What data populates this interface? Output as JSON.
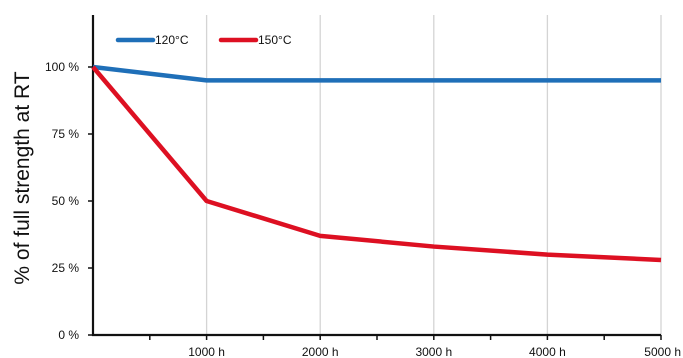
{
  "chart_data": {
    "type": "line",
    "title": "",
    "xlabel": "",
    "ylabel": "% of full strength at RT",
    "xlim": [
      0,
      5000
    ],
    "ylim": [
      0,
      120
    ],
    "x_ticks": [
      1000,
      2000,
      3000,
      4000,
      5000
    ],
    "x_tick_labels": [
      "1000 h",
      "2000 h",
      "3000 h",
      "4000 h",
      "5000 h"
    ],
    "x_minor_ticks": [
      500,
      1500,
      2500,
      3500,
      4500
    ],
    "y_ticks": [
      0,
      25,
      50,
      75,
      100
    ],
    "y_tick_labels": [
      "0 %",
      "25 %",
      "50 %",
      "75 %",
      "100 %"
    ],
    "grid": "vertical",
    "legend_position": "top-left",
    "series": [
      {
        "name": "120°C",
        "color": "#1f6fb8",
        "x": [
          0,
          1000,
          2000,
          3000,
          4000,
          5000
        ],
        "y": [
          100,
          95,
          95,
          95,
          95,
          95
        ]
      },
      {
        "name": "150°C",
        "color": "#dd1022",
        "x": [
          0,
          1000,
          2000,
          3000,
          4000,
          5000
        ],
        "y": [
          100,
          50,
          37,
          33,
          30,
          28
        ]
      }
    ]
  }
}
